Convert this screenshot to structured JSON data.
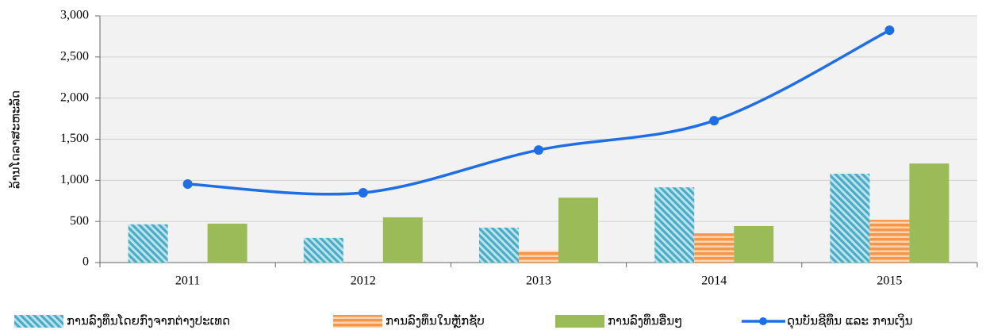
{
  "chart_data": {
    "type": "bar_line",
    "ylabel": "ລ້ານໂດລາສະຫະລັດ",
    "categories": [
      "2011",
      "2012",
      "2013",
      "2014",
      "2015"
    ],
    "series": [
      {
        "name": "ການລົງທຶນໂດຍກົງຈາກຕ່າງປະເທດ",
        "type": "bar",
        "pattern": "diagonal",
        "color": "#4bacc6",
        "values": [
          465,
          300,
          425,
          915,
          1080
        ]
      },
      {
        "name": "ການລົງທຶນໃນຫຼັກຊັບ",
        "type": "bar",
        "pattern": "horizontal",
        "color": "#f79646",
        "values": [
          0,
          0,
          145,
          355,
          520
        ]
      },
      {
        "name": "ການລົງທຶນອື່ນໆ",
        "type": "bar",
        "pattern": "solid",
        "color": "#9bbb59",
        "values": [
          473,
          550,
          790,
          444,
          1205
        ]
      },
      {
        "name": "ດຸນບັນຊີທຶນ ແລະ ການເງິນ",
        "type": "line",
        "color": "#1e6ee6",
        "values": [
          955,
          849,
          1369,
          1726,
          2825
        ]
      }
    ],
    "ylim": [
      0,
      3000
    ],
    "yticks": [
      0,
      {
        "value": 500,
        "label": "500"
      },
      {
        "value": 1000,
        "label": "1,000"
      },
      {
        "value": 1500,
        "label": "1,500"
      },
      {
        "value": 2000,
        "label": "2,000"
      },
      {
        "value": 2500,
        "label": "2,500"
      },
      {
        "value": 3000,
        "label": "3,000"
      }
    ],
    "grid": true
  }
}
